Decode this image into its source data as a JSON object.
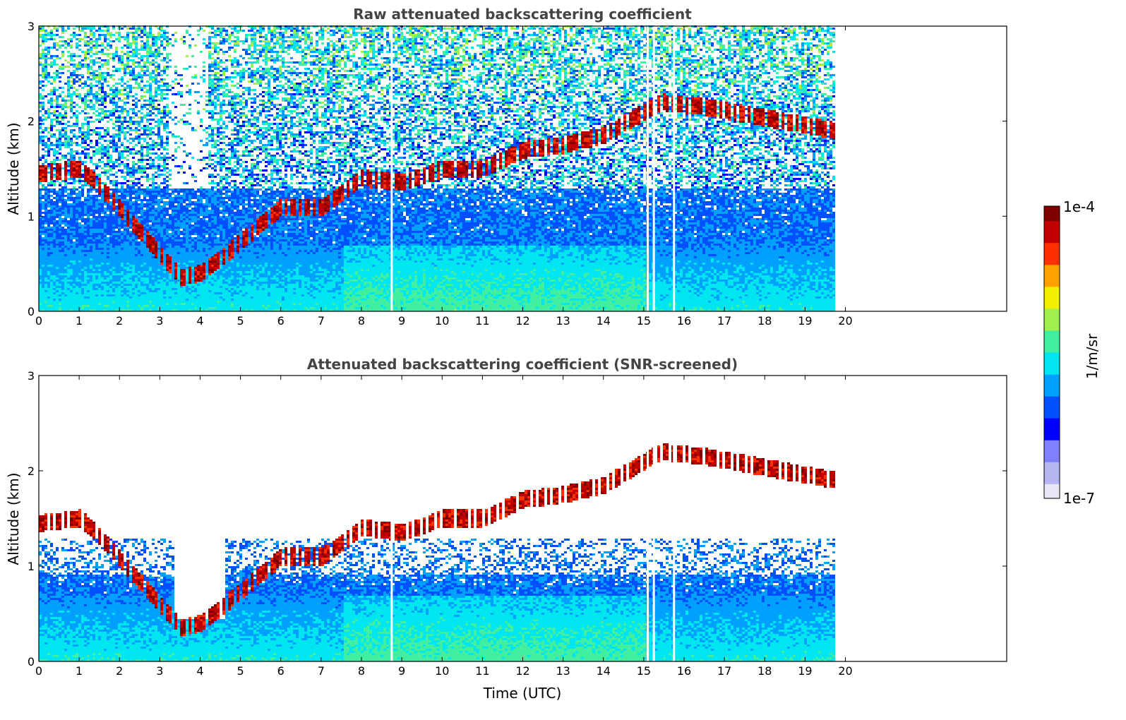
{
  "chart_data": [
    {
      "type": "heatmap",
      "title": "Raw attenuated backscattering coefficient",
      "xlabel": "",
      "ylabel": "Altitude (km)",
      "xlim": [
        0,
        24
      ],
      "ylim": [
        0,
        3
      ],
      "x_ticks": [
        "0",
        "1",
        "2",
        "3",
        "4",
        "5",
        "6",
        "7",
        "8",
        "9",
        "10",
        "11",
        "12",
        "13",
        "14",
        "15",
        "16",
        "17",
        "18",
        "19",
        "20"
      ],
      "y_ticks": [
        "0",
        "1",
        "2",
        "3"
      ],
      "data_end_time": 19.8,
      "gaps": [
        8.75,
        15.1,
        15.25,
        15.75
      ],
      "cloud_base_km": [
        {
          "t": 0.0,
          "z": 1.45
        },
        {
          "t": 1.0,
          "z": 1.5
        },
        {
          "t": 1.4,
          "z": 1.35
        },
        {
          "t": 3.5,
          "z": 0.35
        },
        {
          "t": 4.0,
          "z": 0.4
        },
        {
          "t": 4.6,
          "z": 0.6
        },
        {
          "t": 6.0,
          "z": 1.1
        },
        {
          "t": 7.0,
          "z": 1.1
        },
        {
          "t": 8.0,
          "z": 1.4
        },
        {
          "t": 9.0,
          "z": 1.35
        },
        {
          "t": 10.0,
          "z": 1.5
        },
        {
          "t": 11.0,
          "z": 1.5
        },
        {
          "t": 12.0,
          "z": 1.7
        },
        {
          "t": 13.0,
          "z": 1.75
        },
        {
          "t": 14.0,
          "z": 1.85
        },
        {
          "t": 15.4,
          "z": 2.2
        },
        {
          "t": 16.5,
          "z": 2.15
        },
        {
          "t": 19.7,
          "z": 1.9
        }
      ]
    },
    {
      "type": "heatmap",
      "title": "Attenuated backscattering coefficient (SNR-screened)",
      "xlabel": "Time (UTC)",
      "ylabel": "Altitude (km)",
      "xlim": [
        0,
        24
      ],
      "ylim": [
        0,
        3
      ],
      "x_ticks": [
        "0",
        "1",
        "2",
        "3",
        "4",
        "5",
        "6",
        "7",
        "8",
        "9",
        "10",
        "11",
        "12",
        "13",
        "14",
        "15",
        "16",
        "17",
        "18",
        "19",
        "20"
      ],
      "y_ticks": [
        "0",
        "1",
        "2",
        "3"
      ],
      "data_end_time": 19.8,
      "gaps": [
        8.75,
        15.1,
        15.25,
        15.75
      ]
    }
  ],
  "colorbar": {
    "label": "1/m/sr",
    "max_label": "1e-4",
    "min_label": "1e-7",
    "scale": "log",
    "colormap": [
      "#e6e6f5",
      "#b4b4f0",
      "#8080ff",
      "#0000ff",
      "#0050ff",
      "#00a0ff",
      "#00e6f0",
      "#40f0a0",
      "#a0f050",
      "#f0f000",
      "#ffa000",
      "#ff3000",
      "#c00000",
      "#800000"
    ]
  }
}
